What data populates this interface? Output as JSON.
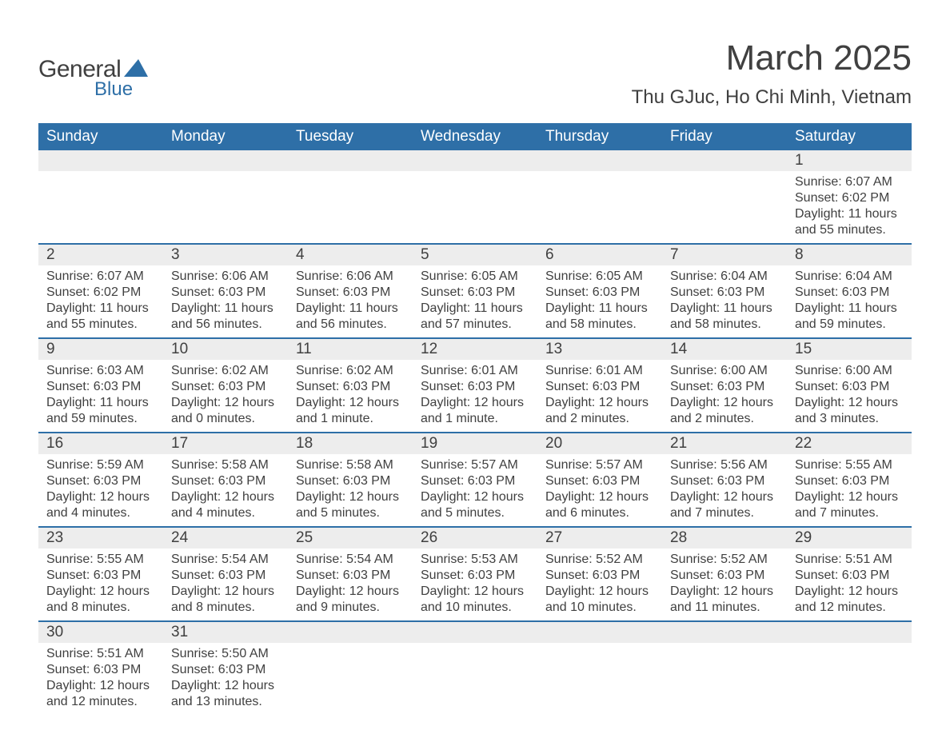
{
  "brand": {
    "general": "General",
    "blue": "Blue",
    "accent_color": "#2e6fa7"
  },
  "title": "March 2025",
  "location": "Thu GJuc, Ho Chi Minh, Vietnam",
  "colors": {
    "header_bg": "#2e6fa7",
    "header_text": "#ffffff",
    "daynum_bg": "#ededed",
    "row_border": "#2e6fa7",
    "text": "#404040",
    "page_bg": "#ffffff"
  },
  "typography": {
    "title_fontsize": 44,
    "location_fontsize": 24,
    "dayheader_fontsize": 19,
    "daynum_fontsize": 19,
    "body_fontsize": 16
  },
  "day_headers": [
    "Sunday",
    "Monday",
    "Tuesday",
    "Wednesday",
    "Thursday",
    "Friday",
    "Saturday"
  ],
  "weeks": [
    [
      null,
      null,
      null,
      null,
      null,
      null,
      {
        "day": "1",
        "sunrise": "Sunrise: 6:07 AM",
        "sunset": "Sunset: 6:02 PM",
        "daylight": "Daylight: 11 hours and 55 minutes."
      }
    ],
    [
      {
        "day": "2",
        "sunrise": "Sunrise: 6:07 AM",
        "sunset": "Sunset: 6:02 PM",
        "daylight": "Daylight: 11 hours and 55 minutes."
      },
      {
        "day": "3",
        "sunrise": "Sunrise: 6:06 AM",
        "sunset": "Sunset: 6:03 PM",
        "daylight": "Daylight: 11 hours and 56 minutes."
      },
      {
        "day": "4",
        "sunrise": "Sunrise: 6:06 AM",
        "sunset": "Sunset: 6:03 PM",
        "daylight": "Daylight: 11 hours and 56 minutes."
      },
      {
        "day": "5",
        "sunrise": "Sunrise: 6:05 AM",
        "sunset": "Sunset: 6:03 PM",
        "daylight": "Daylight: 11 hours and 57 minutes."
      },
      {
        "day": "6",
        "sunrise": "Sunrise: 6:05 AM",
        "sunset": "Sunset: 6:03 PM",
        "daylight": "Daylight: 11 hours and 58 minutes."
      },
      {
        "day": "7",
        "sunrise": "Sunrise: 6:04 AM",
        "sunset": "Sunset: 6:03 PM",
        "daylight": "Daylight: 11 hours and 58 minutes."
      },
      {
        "day": "8",
        "sunrise": "Sunrise: 6:04 AM",
        "sunset": "Sunset: 6:03 PM",
        "daylight": "Daylight: 11 hours and 59 minutes."
      }
    ],
    [
      {
        "day": "9",
        "sunrise": "Sunrise: 6:03 AM",
        "sunset": "Sunset: 6:03 PM",
        "daylight": "Daylight: 11 hours and 59 minutes."
      },
      {
        "day": "10",
        "sunrise": "Sunrise: 6:02 AM",
        "sunset": "Sunset: 6:03 PM",
        "daylight": "Daylight: 12 hours and 0 minutes."
      },
      {
        "day": "11",
        "sunrise": "Sunrise: 6:02 AM",
        "sunset": "Sunset: 6:03 PM",
        "daylight": "Daylight: 12 hours and 1 minute."
      },
      {
        "day": "12",
        "sunrise": "Sunrise: 6:01 AM",
        "sunset": "Sunset: 6:03 PM",
        "daylight": "Daylight: 12 hours and 1 minute."
      },
      {
        "day": "13",
        "sunrise": "Sunrise: 6:01 AM",
        "sunset": "Sunset: 6:03 PM",
        "daylight": "Daylight: 12 hours and 2 minutes."
      },
      {
        "day": "14",
        "sunrise": "Sunrise: 6:00 AM",
        "sunset": "Sunset: 6:03 PM",
        "daylight": "Daylight: 12 hours and 2 minutes."
      },
      {
        "day": "15",
        "sunrise": "Sunrise: 6:00 AM",
        "sunset": "Sunset: 6:03 PM",
        "daylight": "Daylight: 12 hours and 3 minutes."
      }
    ],
    [
      {
        "day": "16",
        "sunrise": "Sunrise: 5:59 AM",
        "sunset": "Sunset: 6:03 PM",
        "daylight": "Daylight: 12 hours and 4 minutes."
      },
      {
        "day": "17",
        "sunrise": "Sunrise: 5:58 AM",
        "sunset": "Sunset: 6:03 PM",
        "daylight": "Daylight: 12 hours and 4 minutes."
      },
      {
        "day": "18",
        "sunrise": "Sunrise: 5:58 AM",
        "sunset": "Sunset: 6:03 PM",
        "daylight": "Daylight: 12 hours and 5 minutes."
      },
      {
        "day": "19",
        "sunrise": "Sunrise: 5:57 AM",
        "sunset": "Sunset: 6:03 PM",
        "daylight": "Daylight: 12 hours and 5 minutes."
      },
      {
        "day": "20",
        "sunrise": "Sunrise: 5:57 AM",
        "sunset": "Sunset: 6:03 PM",
        "daylight": "Daylight: 12 hours and 6 minutes."
      },
      {
        "day": "21",
        "sunrise": "Sunrise: 5:56 AM",
        "sunset": "Sunset: 6:03 PM",
        "daylight": "Daylight: 12 hours and 7 minutes."
      },
      {
        "day": "22",
        "sunrise": "Sunrise: 5:55 AM",
        "sunset": "Sunset: 6:03 PM",
        "daylight": "Daylight: 12 hours and 7 minutes."
      }
    ],
    [
      {
        "day": "23",
        "sunrise": "Sunrise: 5:55 AM",
        "sunset": "Sunset: 6:03 PM",
        "daylight": "Daylight: 12 hours and 8 minutes."
      },
      {
        "day": "24",
        "sunrise": "Sunrise: 5:54 AM",
        "sunset": "Sunset: 6:03 PM",
        "daylight": "Daylight: 12 hours and 8 minutes."
      },
      {
        "day": "25",
        "sunrise": "Sunrise: 5:54 AM",
        "sunset": "Sunset: 6:03 PM",
        "daylight": "Daylight: 12 hours and 9 minutes."
      },
      {
        "day": "26",
        "sunrise": "Sunrise: 5:53 AM",
        "sunset": "Sunset: 6:03 PM",
        "daylight": "Daylight: 12 hours and 10 minutes."
      },
      {
        "day": "27",
        "sunrise": "Sunrise: 5:52 AM",
        "sunset": "Sunset: 6:03 PM",
        "daylight": "Daylight: 12 hours and 10 minutes."
      },
      {
        "day": "28",
        "sunrise": "Sunrise: 5:52 AM",
        "sunset": "Sunset: 6:03 PM",
        "daylight": "Daylight: 12 hours and 11 minutes."
      },
      {
        "day": "29",
        "sunrise": "Sunrise: 5:51 AM",
        "sunset": "Sunset: 6:03 PM",
        "daylight": "Daylight: 12 hours and 12 minutes."
      }
    ],
    [
      {
        "day": "30",
        "sunrise": "Sunrise: 5:51 AM",
        "sunset": "Sunset: 6:03 PM",
        "daylight": "Daylight: 12 hours and 12 minutes."
      },
      {
        "day": "31",
        "sunrise": "Sunrise: 5:50 AM",
        "sunset": "Sunset: 6:03 PM",
        "daylight": "Daylight: 12 hours and 13 minutes."
      },
      null,
      null,
      null,
      null,
      null
    ]
  ]
}
